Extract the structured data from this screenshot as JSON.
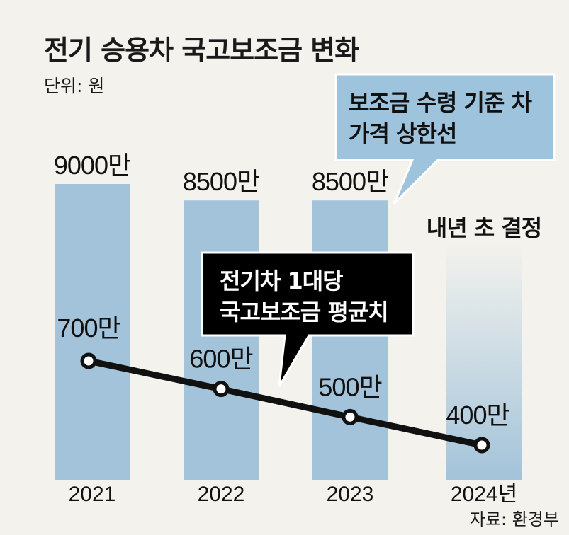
{
  "title": "전기 승용차 국고보조금 변화",
  "unit": "단위: 원",
  "source": "자료: 환경부",
  "colors": {
    "bar": "#a3c3da",
    "bar_pending_top": "#f3f2ed",
    "line": "#111111",
    "callout_blue": "#9ec4dd",
    "callout_black": "#000000",
    "background": "#f3f2ed"
  },
  "callouts": {
    "price_cap": [
      "보조금 수령 기준 차",
      "가격 상한선"
    ],
    "avg_subsidy": [
      "전기차 1대당",
      "국고보조금 평균치"
    ]
  },
  "chart_data": [
    {
      "type": "bar",
      "series": [
        {
          "name": "보조금 수령 기준 차 가격 상한선",
          "values": [
            9000,
            8500,
            8500,
            null
          ]
        }
      ],
      "categories": [
        "2021",
        "2022",
        "2023",
        "2024년"
      ],
      "value_labels": [
        "9000만",
        "8500만",
        "8500만",
        "내년 초 결정"
      ],
      "note": "내년 초 결정",
      "ylim": [
        0,
        9000
      ]
    },
    {
      "type": "line",
      "series": [
        {
          "name": "전기차 1대당 국고보조금 평균치",
          "values": [
            700,
            600,
            500,
            400
          ]
        }
      ],
      "categories": [
        "2021",
        "2022",
        "2023",
        "2024년"
      ],
      "value_labels": [
        "700만",
        "600만",
        "500만",
        "400만"
      ],
      "ylim": [
        0,
        800
      ]
    }
  ]
}
